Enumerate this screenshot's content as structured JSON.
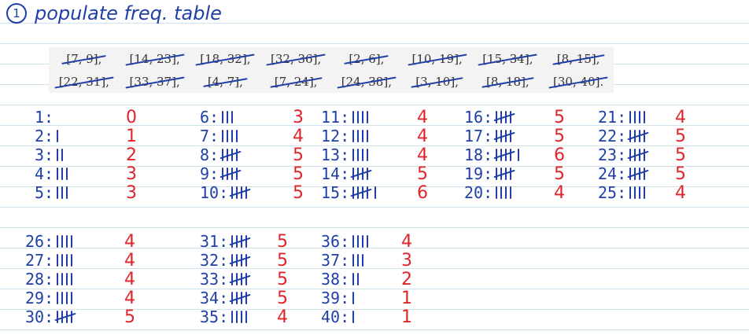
{
  "heading": {
    "number": "1",
    "text": "populate  freq. table"
  },
  "intervals": [
    "[7, 9],",
    "[14, 23],",
    "[18, 32],",
    "[32, 36],",
    "[2, 6],",
    "[10, 19],",
    "[15, 34],",
    "[8, 15],",
    "[22, 31],",
    "[33, 37],",
    "[4, 7],",
    "[7, 24],",
    "[24, 38],",
    "[3, 10],",
    "[8, 18],",
    "[30, 40]."
  ],
  "counts": [
    {
      "label": "1:",
      "tally": 0,
      "freq": "0"
    },
    {
      "label": "2:",
      "tally": 1,
      "freq": "1"
    },
    {
      "label": "3:",
      "tally": 2,
      "freq": "2"
    },
    {
      "label": "4:",
      "tally": 3,
      "freq": "3"
    },
    {
      "label": "5:",
      "tally": 3,
      "freq": "3"
    },
    {
      "label": "6:",
      "tally": 3,
      "freq": "3"
    },
    {
      "label": "7:",
      "tally": 4,
      "freq": "4"
    },
    {
      "label": "8:",
      "tally": 5,
      "freq": "5"
    },
    {
      "label": "9:",
      "tally": 5,
      "freq": "5"
    },
    {
      "label": "10:",
      "tally": 5,
      "freq": "5"
    },
    {
      "label": "11:",
      "tally": 4,
      "freq": "4"
    },
    {
      "label": "12:",
      "tally": 4,
      "freq": "4"
    },
    {
      "label": "13:",
      "tally": 4,
      "freq": "4"
    },
    {
      "label": "14:",
      "tally": 5,
      "freq": "5"
    },
    {
      "label": "15:",
      "tally": 6,
      "freq": "6"
    },
    {
      "label": "16:",
      "tally": 5,
      "freq": "5"
    },
    {
      "label": "17:",
      "tally": 5,
      "freq": "5"
    },
    {
      "label": "18:",
      "tally": 6,
      "freq": "6"
    },
    {
      "label": "19:",
      "tally": 5,
      "freq": "5"
    },
    {
      "label": "20:",
      "tally": 4,
      "freq": "4"
    },
    {
      "label": "21:",
      "tally": 4,
      "freq": "4"
    },
    {
      "label": "22:",
      "tally": 5,
      "freq": "5"
    },
    {
      "label": "23:",
      "tally": 5,
      "freq": "5"
    },
    {
      "label": "24:",
      "tally": 5,
      "freq": "5"
    },
    {
      "label": "25:",
      "tally": 4,
      "freq": "4"
    },
    {
      "label": "26:",
      "tally": 4,
      "freq": "4"
    },
    {
      "label": "27:",
      "tally": 4,
      "freq": "4"
    },
    {
      "label": "28:",
      "tally": 4,
      "freq": "4"
    },
    {
      "label": "29:",
      "tally": 4,
      "freq": "4"
    },
    {
      "label": "30:",
      "tally": 5,
      "freq": "5"
    },
    {
      "label": "31:",
      "tally": 5,
      "freq": "5"
    },
    {
      "label": "32:",
      "tally": 5,
      "freq": "5"
    },
    {
      "label": "33:",
      "tally": 5,
      "freq": "5"
    },
    {
      "label": "34:",
      "tally": 5,
      "freq": "5"
    },
    {
      "label": "35:",
      "tally": 4,
      "freq": "4"
    },
    {
      "label": "36:",
      "tally": 4,
      "freq": "4"
    },
    {
      "label": "37:",
      "tally": 3,
      "freq": "3"
    },
    {
      "label": "38:",
      "tally": 2,
      "freq": "2"
    },
    {
      "label": "39:",
      "tally": 1,
      "freq": "1"
    },
    {
      "label": "40:",
      "tally": 1,
      "freq": "1"
    }
  ],
  "colors": {
    "ink_blue": "#1f3fa6",
    "ink_red": "#e0242c",
    "rule_line": "#cfe3ec",
    "interval_bg": "#f3f3f3"
  }
}
